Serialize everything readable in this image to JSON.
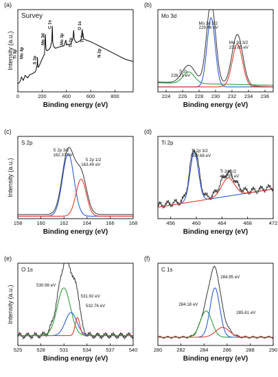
{
  "chart_data": [
    {
      "panel": "(a)",
      "type": "line",
      "title": "Survey",
      "xlabel": "Binding energy (eV)",
      "ylabel": "Intensity (a.u.)",
      "xlim": [
        0,
        950
      ],
      "ylim": [
        0,
        1
      ],
      "grid": false,
      "xticks": [
        0,
        200,
        400,
        600,
        800
      ],
      "series": [
        {
          "color": "#000000",
          "x": [
            0,
            10,
            20,
            30,
            45,
            60,
            80,
            100,
            120,
            140,
            150,
            160,
            162,
            165,
            170,
            180,
            200,
            220,
            226,
            229,
            232,
            240,
            260,
            270,
            280,
            284,
            288,
            295,
            310,
            330,
            350,
            380,
            395,
            398,
            400,
            410,
            420,
            440,
            455,
            460,
            465,
            480,
            500,
            520,
            526,
            530,
            534,
            540,
            560,
            580,
            600,
            640,
            680,
            720,
            760,
            800,
            840,
            880,
            920,
            950
          ],
          "y": [
            0.1,
            0.11,
            0.13,
            0.18,
            0.14,
            0.2,
            0.17,
            0.21,
            0.22,
            0.24,
            0.26,
            0.34,
            0.42,
            0.3,
            0.3,
            0.33,
            0.4,
            0.46,
            0.7,
            0.62,
            0.52,
            0.5,
            0.52,
            0.55,
            0.62,
            0.8,
            0.6,
            0.55,
            0.53,
            0.54,
            0.55,
            0.56,
            0.63,
            0.6,
            0.57,
            0.58,
            0.57,
            0.59,
            0.66,
            0.75,
            0.64,
            0.6,
            0.61,
            0.63,
            0.7,
            0.76,
            0.7,
            0.65,
            0.63,
            0.62,
            0.61,
            0.58,
            0.55,
            0.52,
            0.49,
            0.46,
            0.43,
            0.4,
            0.38,
            0.37
          ]
        }
      ],
      "annotations": [
        {
          "text": "Ti 3p",
          "x": 30
        },
        {
          "text": "Mo 4p",
          "x": 42
        },
        {
          "text": "S 2p",
          "x": 162
        },
        {
          "text": "Mo 3d",
          "x": 229
        },
        {
          "text": "C 1s",
          "x": 285
        },
        {
          "text": "Mo 3p",
          "x": 395
        },
        {
          "text": "Ti 2p",
          "x": 459
        },
        {
          "text": "O 1s",
          "x": 531
        },
        {
          "text": "Ti 2s",
          "x": 565
        },
        {
          "text": "N 2p",
          "x": 680
        }
      ]
    },
    {
      "panel": "(b)",
      "type": "line",
      "title": "Mo 3d",
      "xlabel": "Binding energy (eV)",
      "ylabel": "",
      "xlim": [
        223,
        237
      ],
      "ylim": [
        0,
        1
      ],
      "grid": false,
      "xticks": [
        224,
        226,
        228,
        230,
        232,
        234,
        236
      ],
      "series": [
        {
          "color": "#333333",
          "peaks": [
            [
              226.75,
              0.22,
              0.8
            ],
            [
              229.46,
              1.0,
              0.55
            ],
            [
              232.65,
              0.62,
              0.65
            ]
          ],
          "baseline": [
            0.12,
            0.06
          ]
        },
        {
          "color": "#2e9e3a",
          "peaks": [
            [
              226.75,
              0.14,
              0.7
            ]
          ],
          "baseline": [
            0.11,
            0.08
          ]
        },
        {
          "color": "#2a5bd7",
          "peaks": [
            [
              229.46,
              0.84,
              0.5
            ]
          ],
          "baseline": [
            0.06,
            0.06
          ]
        },
        {
          "color": "#e53a2a",
          "peaks": [
            [
              232.65,
              0.52,
              0.62
            ]
          ],
          "baseline": [
            0.06,
            0.06
          ]
        }
      ],
      "annotations": [
        {
          "text": "Mo 3d 5/2",
          "x": 229.46
        },
        {
          "text": "229.46 eV",
          "x": 229.46
        },
        {
          "text": "Mo 3d 3/2",
          "x": 232.65
        },
        {
          "text": "232.65 eV",
          "x": 232.65
        },
        {
          "text": "S 2s",
          "x": 226.75
        },
        {
          "text": "226.75 eV",
          "x": 226.75
        }
      ]
    },
    {
      "panel": "(c)",
      "type": "line",
      "title": "S 2p",
      "xlabel": "Binding energy (eV)",
      "ylabel": "Intensity (a.u.)",
      "xlim": [
        158,
        168
      ],
      "ylim": [
        0,
        1
      ],
      "grid": false,
      "xticks": [
        158,
        160,
        162,
        164,
        166,
        168
      ],
      "series": [
        {
          "color": "#333333",
          "peaks": [
            [
              162.37,
              0.78,
              0.52
            ],
            [
              163.49,
              0.48,
              0.48
            ]
          ],
          "baseline": [
            0.05,
            0.05
          ]
        },
        {
          "color": "#2a5bd7",
          "peaks": [
            [
              162.37,
              0.76,
              0.5
            ]
          ],
          "baseline": [
            0.03,
            0.03
          ]
        },
        {
          "color": "#e53a2a",
          "peaks": [
            [
              163.49,
              0.45,
              0.45
            ]
          ],
          "baseline": [
            0.03,
            0.03
          ]
        }
      ],
      "annotations": [
        {
          "text": "S 2p 3/2",
          "x": 162.37
        },
        {
          "text": "162.37 eV",
          "x": 162.37
        },
        {
          "text": "S 2p 1/2",
          "x": 163.49
        },
        {
          "text": "163.49 eV",
          "x": 163.49
        }
      ]
    },
    {
      "panel": "(d)",
      "type": "line",
      "title": "Ti 2p",
      "xlabel": "Binding energy (eV)",
      "ylabel": "",
      "xlim": [
        454,
        472
      ],
      "ylim": [
        0,
        1
      ],
      "grid": false,
      "xticks": [
        456,
        460,
        464,
        468,
        472
      ],
      "series": [
        {
          "color": "#333333",
          "peaks": [
            [
              459.68,
              0.62,
              0.7
            ],
            [
              464.95,
              0.26,
              1.1
            ]
          ],
          "baseline": [
            0.16,
            0.38
          ],
          "noise": 0.05
        },
        {
          "color": "#2a5bd7",
          "peaks": [
            [
              459.68,
              0.6,
              0.65
            ]
          ],
          "baseline": [
            0.14,
            0.36
          ]
        },
        {
          "color": "#e53a2a",
          "peaks": [
            [
              464.95,
              0.22,
              1.0
            ]
          ],
          "baseline": [
            0.14,
            0.36
          ]
        }
      ],
      "annotations": [
        {
          "text": "Ti 2p 3/2",
          "x": 459.68
        },
        {
          "text": "459.68 eV",
          "x": 459.68
        },
        {
          "text": "Ti 2p 1/2",
          "x": 464.95
        },
        {
          "text": "464.95 eV",
          "x": 464.95
        }
      ]
    },
    {
      "panel": "(e)",
      "type": "line",
      "title": "O 1s",
      "xlabel": "Binding energy (eV)",
      "ylabel": "Intensity (a.u.)",
      "xlim": [
        525,
        540
      ],
      "ylim": [
        0,
        1
      ],
      "grid": false,
      "xticks": [
        525,
        528,
        531,
        534,
        537,
        540
      ],
      "series": [
        {
          "color": "#333333",
          "peaks": [
            [
              530.98,
              0.68,
              0.9
            ],
            [
              531.92,
              0.38,
              0.8
            ],
            [
              532.76,
              0.25,
              0.35
            ]
          ],
          "baseline": [
            0.12,
            0.12
          ],
          "noise": 0.04
        },
        {
          "color": "#2e9e3a",
          "peaks": [
            [
              530.98,
              0.58,
              0.85
            ]
          ],
          "baseline": [
            0.12,
            0.12
          ]
        },
        {
          "color": "#2a5bd7",
          "peaks": [
            [
              531.92,
              0.28,
              0.75
            ]
          ],
          "baseline": [
            0.12,
            0.12
          ]
        },
        {
          "color": "#e53a2a",
          "peaks": [
            [
              532.76,
              0.22,
              0.3
            ]
          ],
          "baseline": [
            0.12,
            0.12
          ]
        }
      ],
      "annotations": [
        {
          "text": "530.98 eV",
          "x": 530.98
        },
        {
          "text": "531.92 eV",
          "x": 531.92
        },
        {
          "text": "532.76 eV",
          "x": 532.76
        }
      ]
    },
    {
      "panel": "(f)",
      "type": "line",
      "title": "C 1s",
      "xlabel": "Binding energy (eV)",
      "ylabel": "",
      "xlim": [
        280,
        290
      ],
      "ylim": [
        0,
        1
      ],
      "grid": false,
      "xticks": [
        280,
        282,
        284,
        286,
        288,
        290
      ],
      "series": [
        {
          "color": "#333333",
          "peaks": [
            [
              284.95,
              0.68,
              0.45
            ],
            [
              284.18,
              0.3,
              0.5
            ],
            [
              285.61,
              0.14,
              0.6
            ]
          ],
          "baseline": [
            0.1,
            0.1
          ],
          "noise": 0.015
        },
        {
          "color": "#2e9e3a",
          "peaks": [
            [
              284.18,
              0.32,
              0.5
            ]
          ],
          "baseline": [
            0.1,
            0.1
          ]
        },
        {
          "color": "#2a5bd7",
          "peaks": [
            [
              284.95,
              0.6,
              0.42
            ]
          ],
          "baseline": [
            0.1,
            0.1
          ]
        },
        {
          "color": "#e53a2a",
          "peaks": [
            [
              285.61,
              0.12,
              0.6
            ]
          ],
          "baseline": [
            0.1,
            0.1
          ]
        }
      ],
      "annotations": [
        {
          "text": "284.95 eV",
          "x": 284.95
        },
        {
          "text": "284.18 eV",
          "x": 284.18
        },
        {
          "text": "285.61 eV",
          "x": 285.61
        }
      ]
    }
  ]
}
